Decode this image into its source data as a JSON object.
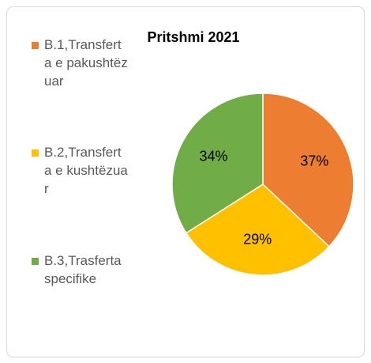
{
  "chart_data": {
    "type": "pie",
    "title": "Pritshmi 2021",
    "categories": [
      "B.1,Transferta e pakushtëzuar",
      "B.2,Transferta e kushtëzuar",
      "B.3,Trasferta specifike"
    ],
    "values": [
      37,
      29,
      34
    ],
    "value_labels": [
      "37%",
      "29%",
      "34%"
    ],
    "colors": [
      "#ED7D31",
      "#FFC000",
      "#70AD47"
    ],
    "legend": "left"
  }
}
